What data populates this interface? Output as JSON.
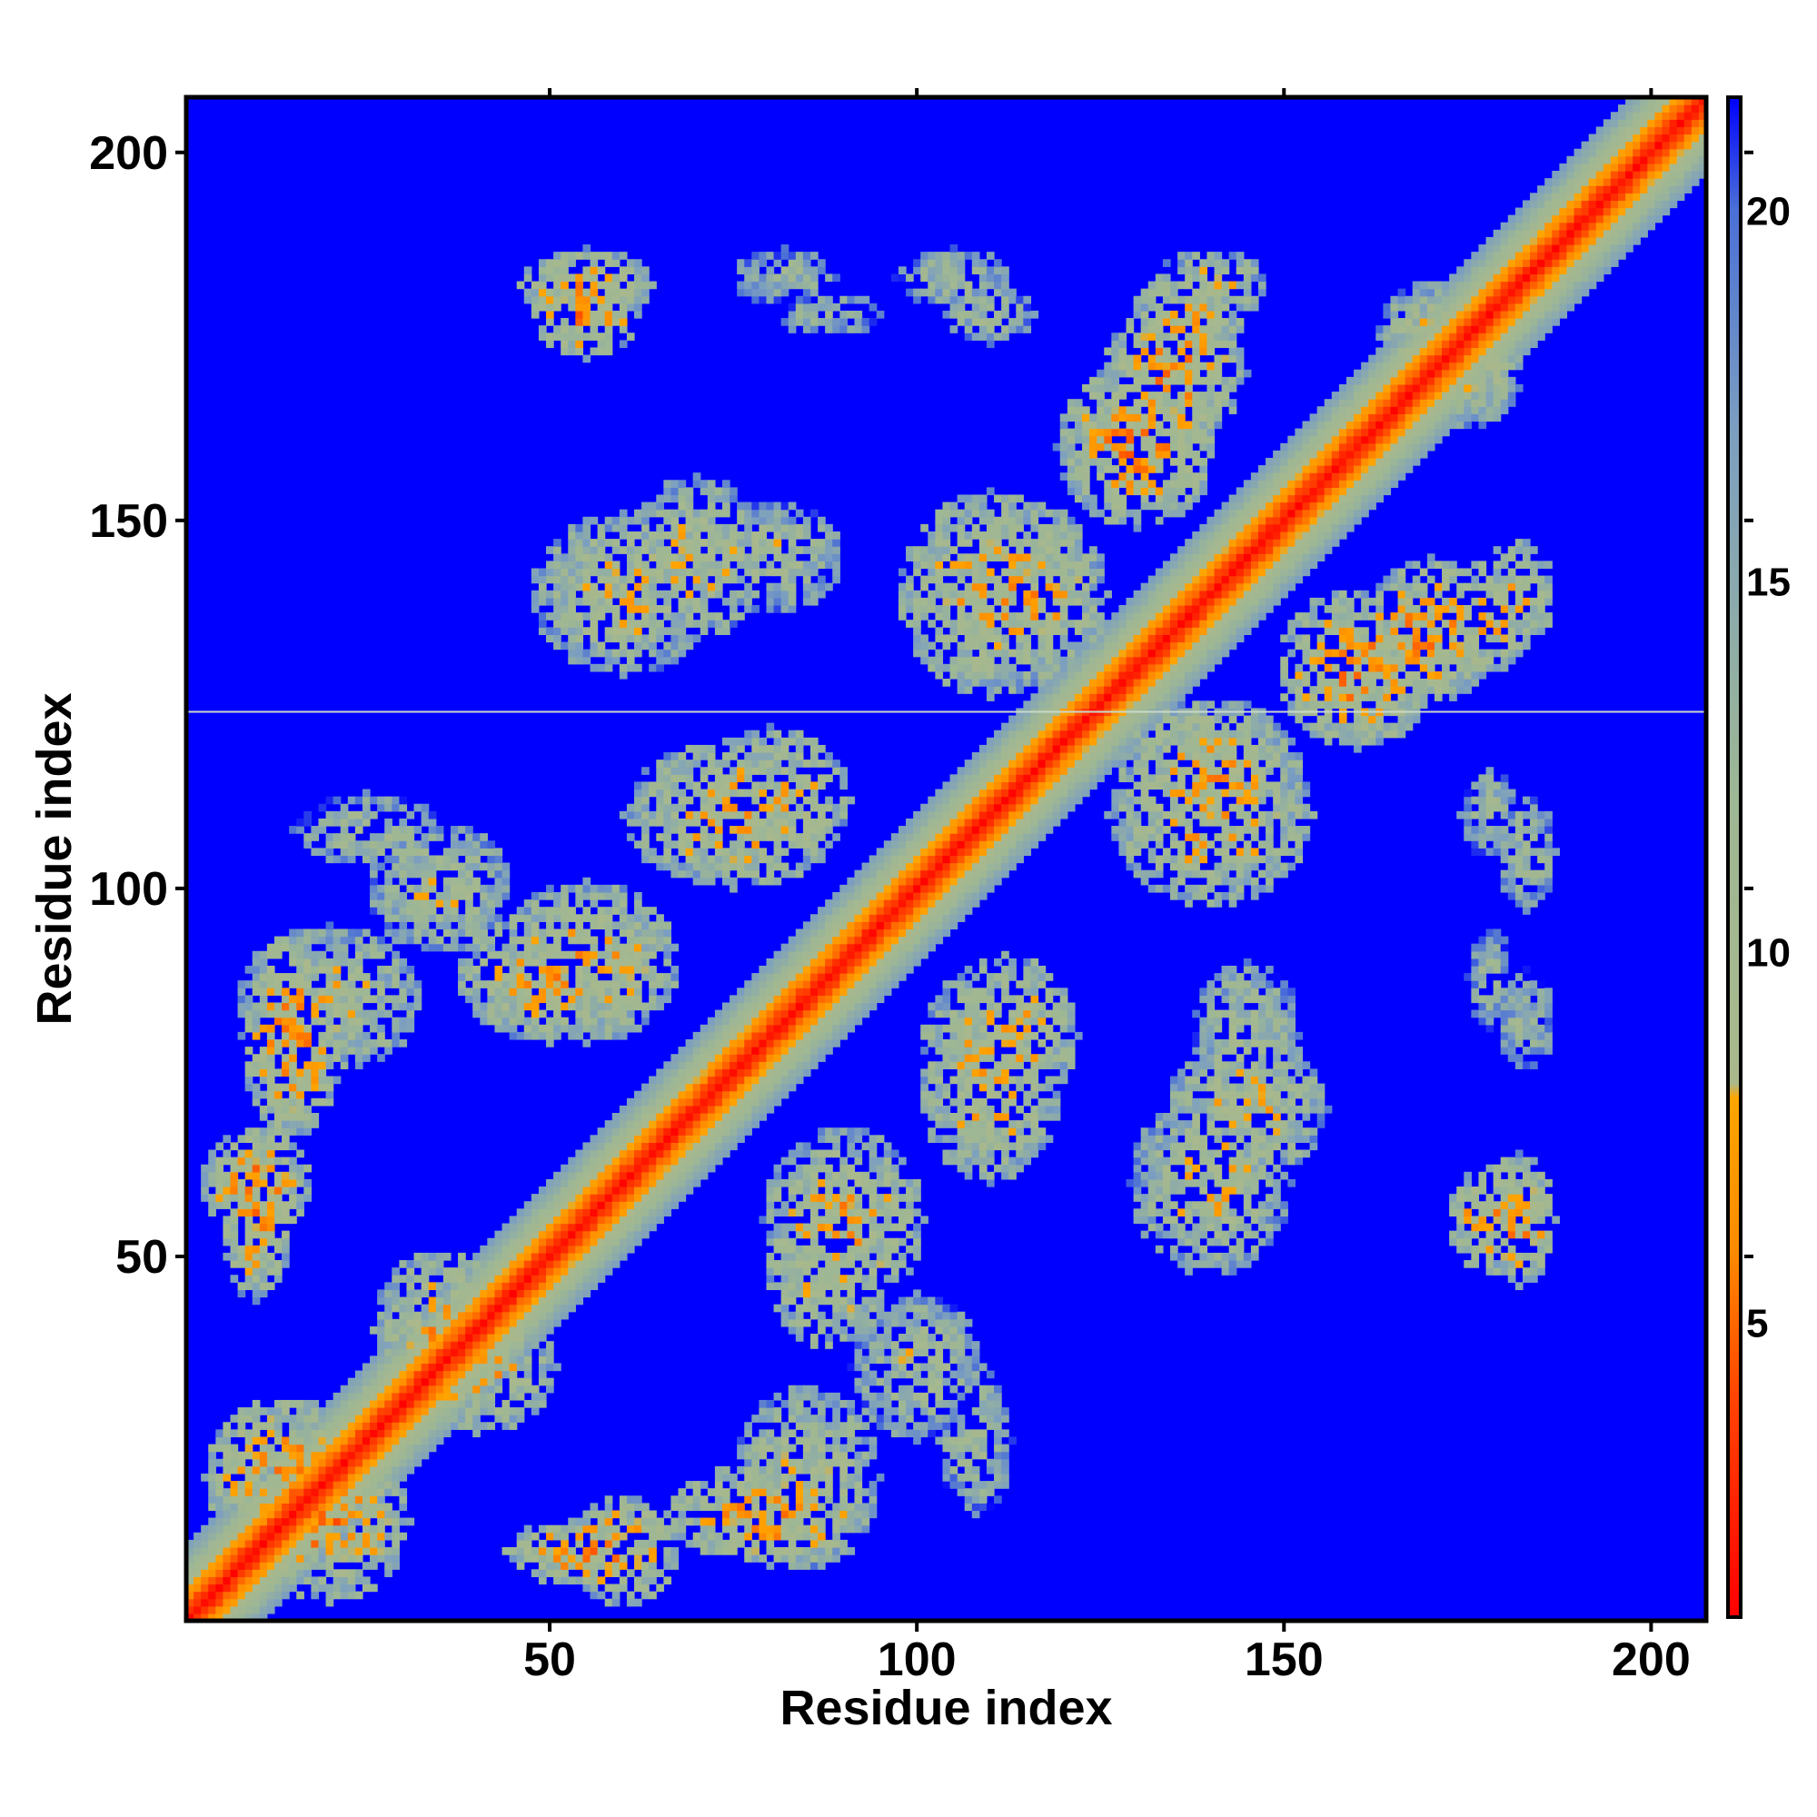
{
  "chart_data": {
    "type": "heatmap",
    "title": "",
    "xlabel": "Residue index",
    "ylabel": "Residue index",
    "n_residues": 207,
    "xlim": [
      1,
      207
    ],
    "ylim": [
      1,
      207
    ],
    "x_ticks": [
      50,
      100,
      150,
      200
    ],
    "y_ticks": [
      50,
      100,
      150,
      200
    ],
    "grid": false,
    "colorbar": {
      "range": [
        1,
        21.5
      ],
      "ticks": [
        5,
        10,
        15,
        20
      ],
      "stops": [
        {
          "value": 1,
          "color": "#ff0000"
        },
        {
          "value": 4,
          "color": "#ff4500"
        },
        {
          "value": 6,
          "color": "#ff8c00"
        },
        {
          "value": 8,
          "color": "#ffa500"
        },
        {
          "value": 8.2,
          "color": "#aab88c"
        },
        {
          "value": 12,
          "color": "#9eb794"
        },
        {
          "value": 17,
          "color": "#7c9fc0"
        },
        {
          "value": 20,
          "color": "#4a6fd6"
        },
        {
          "value": 21.5,
          "color": "#0000ff"
        }
      ]
    },
    "background_value": 21.5,
    "diagonal_band": {
      "core_value": 1.5,
      "halfwidth_residues": 10
    },
    "horizontal_line": {
      "y": 124,
      "color": "#c8d8c8"
    },
    "contact_regions": [
      {
        "center": [
          20,
          85
        ],
        "size": [
          25,
          20
        ],
        "value": 10
      },
      {
        "center": [
          50,
          88
        ],
        "size": [
          25,
          18
        ],
        "value": 9
      },
      {
        "center": [
          10,
          60
        ],
        "size": [
          15,
          15
        ],
        "value": 8
      },
      {
        "center": [
          25,
          108
        ],
        "size": [
          20,
          10
        ],
        "value": 12
      },
      {
        "center": [
          14,
          20
        ],
        "size": [
          22,
          22
        ],
        "value": 8
      },
      {
        "center": [
          40,
          35
        ],
        "size": [
          22,
          18
        ],
        "value": 9
      },
      {
        "center": [
          55,
          10
        ],
        "size": [
          22,
          10
        ],
        "value": 8
      },
      {
        "center": [
          80,
          15
        ],
        "size": [
          28,
          14
        ],
        "value": 8
      },
      {
        "center": [
          90,
          55
        ],
        "size": [
          22,
          25
        ],
        "value": 9
      },
      {
        "center": [
          100,
          35
        ],
        "size": [
          18,
          20
        ],
        "value": 11
      },
      {
        "center": [
          75,
          110
        ],
        "size": [
          30,
          20
        ],
        "value": 9
      },
      {
        "center": [
          60,
          140
        ],
        "size": [
          25,
          22
        ],
        "value": 10
      },
      {
        "center": [
          80,
          145
        ],
        "size": [
          20,
          15
        ],
        "value": 11
      },
      {
        "center": [
          55,
          182
        ],
        "size": [
          18,
          10
        ],
        "value": 8
      },
      {
        "center": [
          82,
          183
        ],
        "size": [
          14,
          8
        ],
        "value": 13
      },
      {
        "center": [
          105,
          183
        ],
        "size": [
          16,
          8
        ],
        "value": 12
      },
      {
        "center": [
          112,
          80
        ],
        "size": [
          20,
          22
        ],
        "value": 9
      },
      {
        "center": [
          115,
          140
        ],
        "size": [
          22,
          25
        ],
        "value": 9
      },
      {
        "center": [
          135,
          170
        ],
        "size": [
          20,
          18
        ],
        "value": 8
      },
      {
        "center": [
          140,
          110
        ],
        "size": [
          28,
          25
        ],
        "value": 9
      },
      {
        "center": [
          160,
          130
        ],
        "size": [
          22,
          22
        ],
        "value": 8
      },
      {
        "center": [
          145,
          70
        ],
        "size": [
          22,
          20
        ],
        "value": 10
      },
      {
        "center": [
          140,
          182
        ],
        "size": [
          15,
          10
        ],
        "value": 10
      },
      {
        "center": [
          178,
          137
        ],
        "size": [
          12,
          15
        ],
        "value": 9
      },
      {
        "center": [
          178,
          55
        ],
        "size": [
          12,
          14
        ],
        "value": 8
      },
      {
        "center": [
          178,
          110
        ],
        "size": [
          8,
          12
        ],
        "value": 12
      },
      {
        "center": [
          178,
          88
        ],
        "size": [
          6,
          14
        ],
        "value": 13
      },
      {
        "center": [
          170,
          175
        ],
        "size": [
          15,
          15
        ],
        "value": 10
      }
    ]
  }
}
